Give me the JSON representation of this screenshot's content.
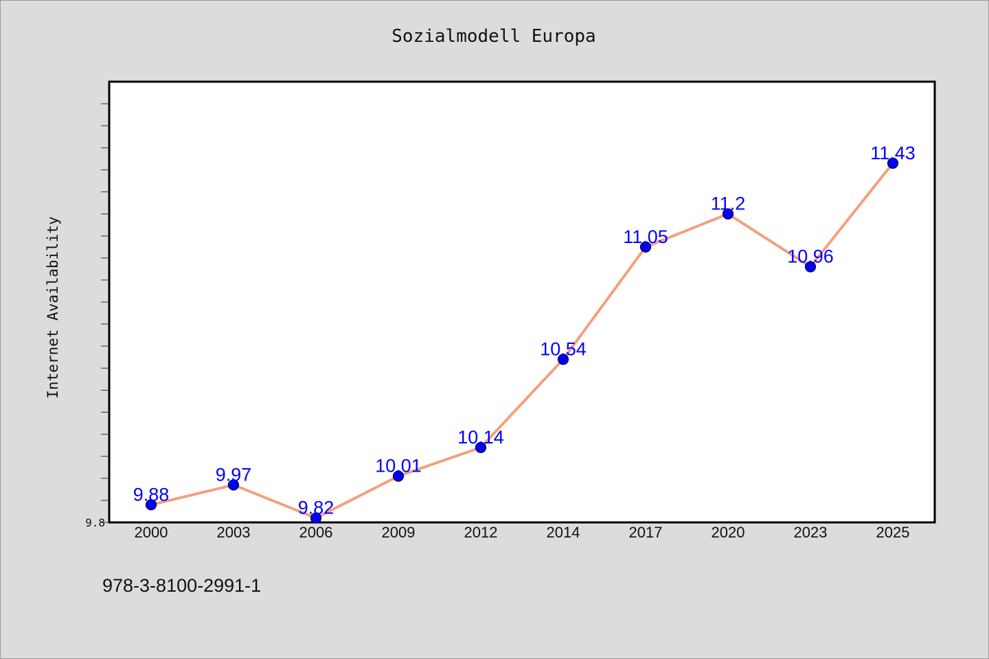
{
  "chart_data": {
    "type": "line",
    "title": "Sozialmodell Europa",
    "xlabel": "",
    "ylabel": "Internet Availability",
    "categories": [
      "2000",
      "2003",
      "2006",
      "2009",
      "2012",
      "2014",
      "2017",
      "2020",
      "2023",
      "2025"
    ],
    "series": [
      {
        "values": [
          9.88,
          9.97,
          9.82,
          10.01,
          10.14,
          10.54,
          11.05,
          11.2,
          10.96,
          11.43
        ],
        "labels": [
          "9.88",
          "9.97",
          "9.82",
          "10.01",
          "10.14",
          "10.54",
          "11.05",
          "11.2",
          "10.96",
          "11.43"
        ]
      }
    ],
    "ylim": [
      9.8,
      11.8
    ],
    "yticks_labeled": [
      "9.8"
    ],
    "grid": false,
    "colors": {
      "line": "#f4a07e",
      "marker": "#0000ff",
      "data_label": "#0000ff",
      "background": "#dcdcdc",
      "plot_background": "#ffffff"
    }
  },
  "footer_text": "978-3-8100-2991-1"
}
